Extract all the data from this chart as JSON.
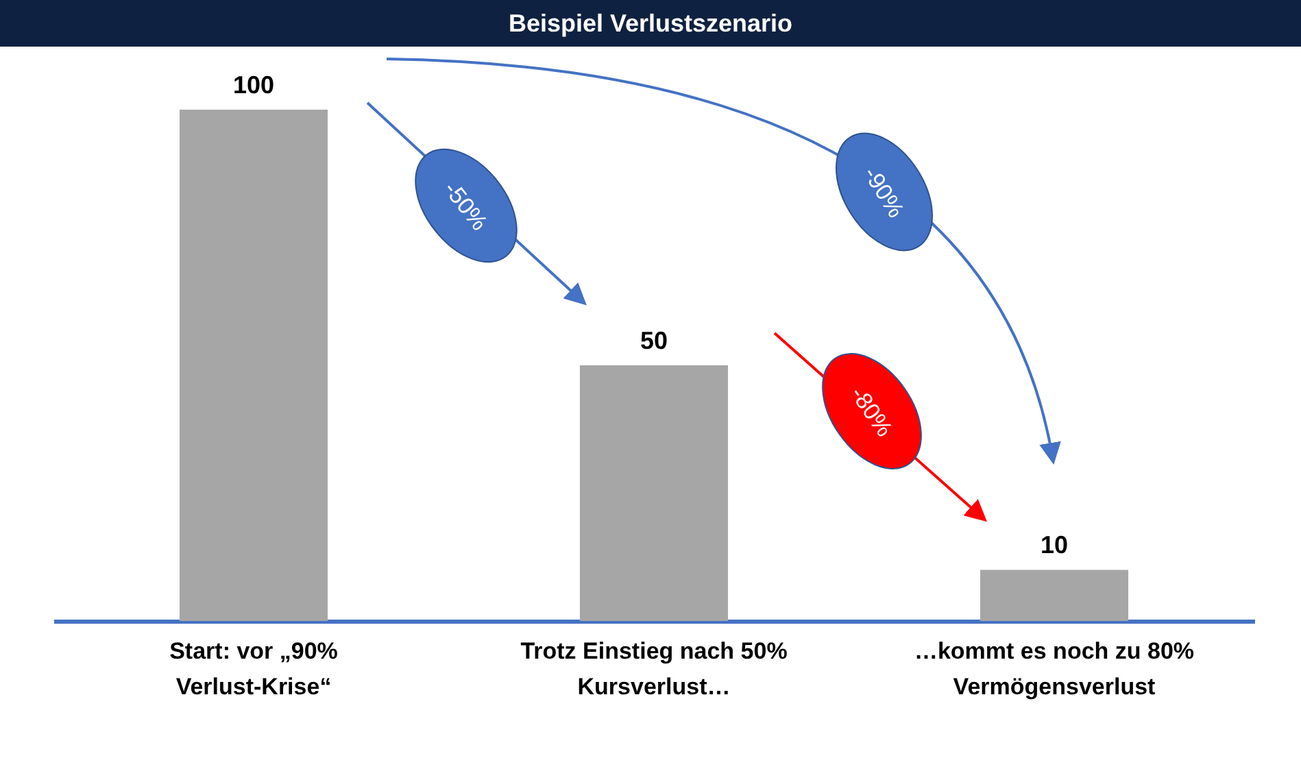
{
  "chart_data": {
    "type": "bar",
    "title": "Beispiel Verlustszenario",
    "categories": [
      "Start: vor „90% Verlust-Krise“",
      "Trotz Einstieg nach 50% Kursverlust…",
      "…kommt es noch zu 80% Vermögensverlust"
    ],
    "values": [
      100,
      50,
      10
    ],
    "color": "#a6a6a6",
    "ylim": [
      0,
      100
    ],
    "data_labels": true,
    "tick_labels": "x",
    "annotations": [
      "-50%",
      "-90%",
      "-80%"
    ]
  }
}
